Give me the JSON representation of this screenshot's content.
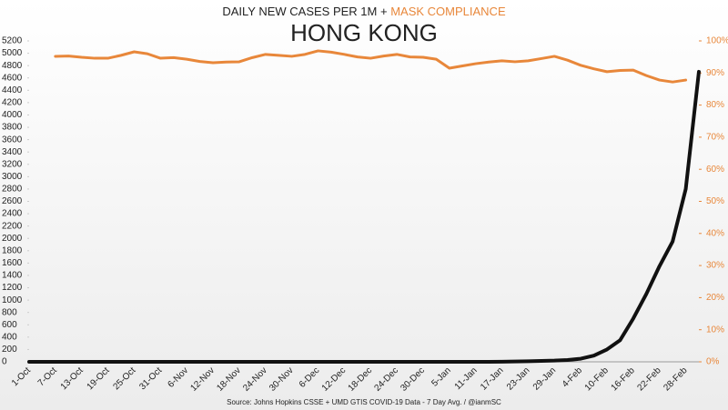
{
  "chart_data": {
    "type": "line",
    "title": "DAILY NEW CASES PER 1M +",
    "title_highlight": "MASK COMPLIANCE",
    "subtitle": "HONG KONG",
    "source": "Source: Johns Hopkins CSSE + UMD GTIS COVID-19 Data - 7 Day Avg. / @ianmSC",
    "categories": [
      "1-Oct",
      null,
      "7-Oct",
      null,
      "13-Oct",
      null,
      "19-Oct",
      null,
      "25-Oct",
      null,
      "31-Oct",
      null,
      "6-Nov",
      null,
      "12-Nov",
      null,
      "18-Nov",
      null,
      "24-Nov",
      null,
      "30-Nov",
      null,
      "6-Dec",
      null,
      "12-Dec",
      null,
      "18-Dec",
      null,
      "24-Dec",
      null,
      "30-Dec",
      null,
      "5-Jan",
      null,
      "11-Jan",
      null,
      "17-Jan",
      null,
      "23-Jan",
      null,
      "29-Jan",
      null,
      "4-Feb",
      null,
      "10-Feb",
      null,
      "16-Feb",
      null,
      "22-Feb",
      null,
      "28-Feb",
      null
    ],
    "series": [
      {
        "color": "#111111",
        "values": [
          0,
          0,
          0,
          0,
          0,
          0,
          0,
          0,
          0,
          0,
          0,
          0,
          0,
          0,
          0,
          0,
          0,
          0,
          0,
          0,
          0,
          0,
          0,
          0,
          0,
          0,
          0,
          0,
          0,
          0,
          0,
          0,
          0,
          0,
          0,
          0,
          2,
          5,
          10,
          15,
          20,
          30,
          50,
          100,
          200,
          350,
          700,
          1100,
          1550,
          1950,
          2800,
          4700
        ]
      },
      {
        "color": "#e8873a",
        "axis": "y2",
        "values": [
          null,
          null,
          95.2,
          95.3,
          94.9,
          94.6,
          94.6,
          95.5,
          96.6,
          96.0,
          94.6,
          94.8,
          94.3,
          93.6,
          93.2,
          93.4,
          93.5,
          94.8,
          95.8,
          95.5,
          95.2,
          95.8,
          96.9,
          96.5,
          95.8,
          95.0,
          94.6,
          95.3,
          95.8,
          95.0,
          94.9,
          94.3,
          91.5,
          92.2,
          92.9,
          93.4,
          93.8,
          93.5,
          93.8,
          94.5,
          95.2,
          94.0,
          92.4,
          91.3,
          90.4,
          90.8,
          90.9,
          89.2,
          87.8,
          87.2,
          87.8,
          null
        ]
      }
    ],
    "ylim": [
      0,
      5200
    ],
    "yticks": [
      0,
      200,
      400,
      600,
      800,
      1000,
      1200,
      1400,
      1600,
      1800,
      2000,
      2200,
      2400,
      2600,
      2800,
      3000,
      3200,
      3400,
      3600,
      3800,
      4000,
      4200,
      4400,
      4600,
      4800,
      5000,
      5200
    ],
    "y2lim": [
      0,
      100
    ],
    "y2ticks": [
      {
        "value": 0,
        "label": "0%"
      },
      {
        "value": 10,
        "label": "10%"
      },
      {
        "value": 20,
        "label": "20%"
      },
      {
        "value": 30,
        "label": "30%"
      },
      {
        "value": 40,
        "label": "40%"
      },
      {
        "value": 50,
        "label": "50%"
      },
      {
        "value": 60,
        "label": "60%"
      },
      {
        "value": 70,
        "label": "70%"
      },
      {
        "value": 80,
        "label": "80%"
      },
      {
        "value": 90,
        "label": "90%"
      },
      {
        "value": 100,
        "label": "100%"
      }
    ]
  }
}
